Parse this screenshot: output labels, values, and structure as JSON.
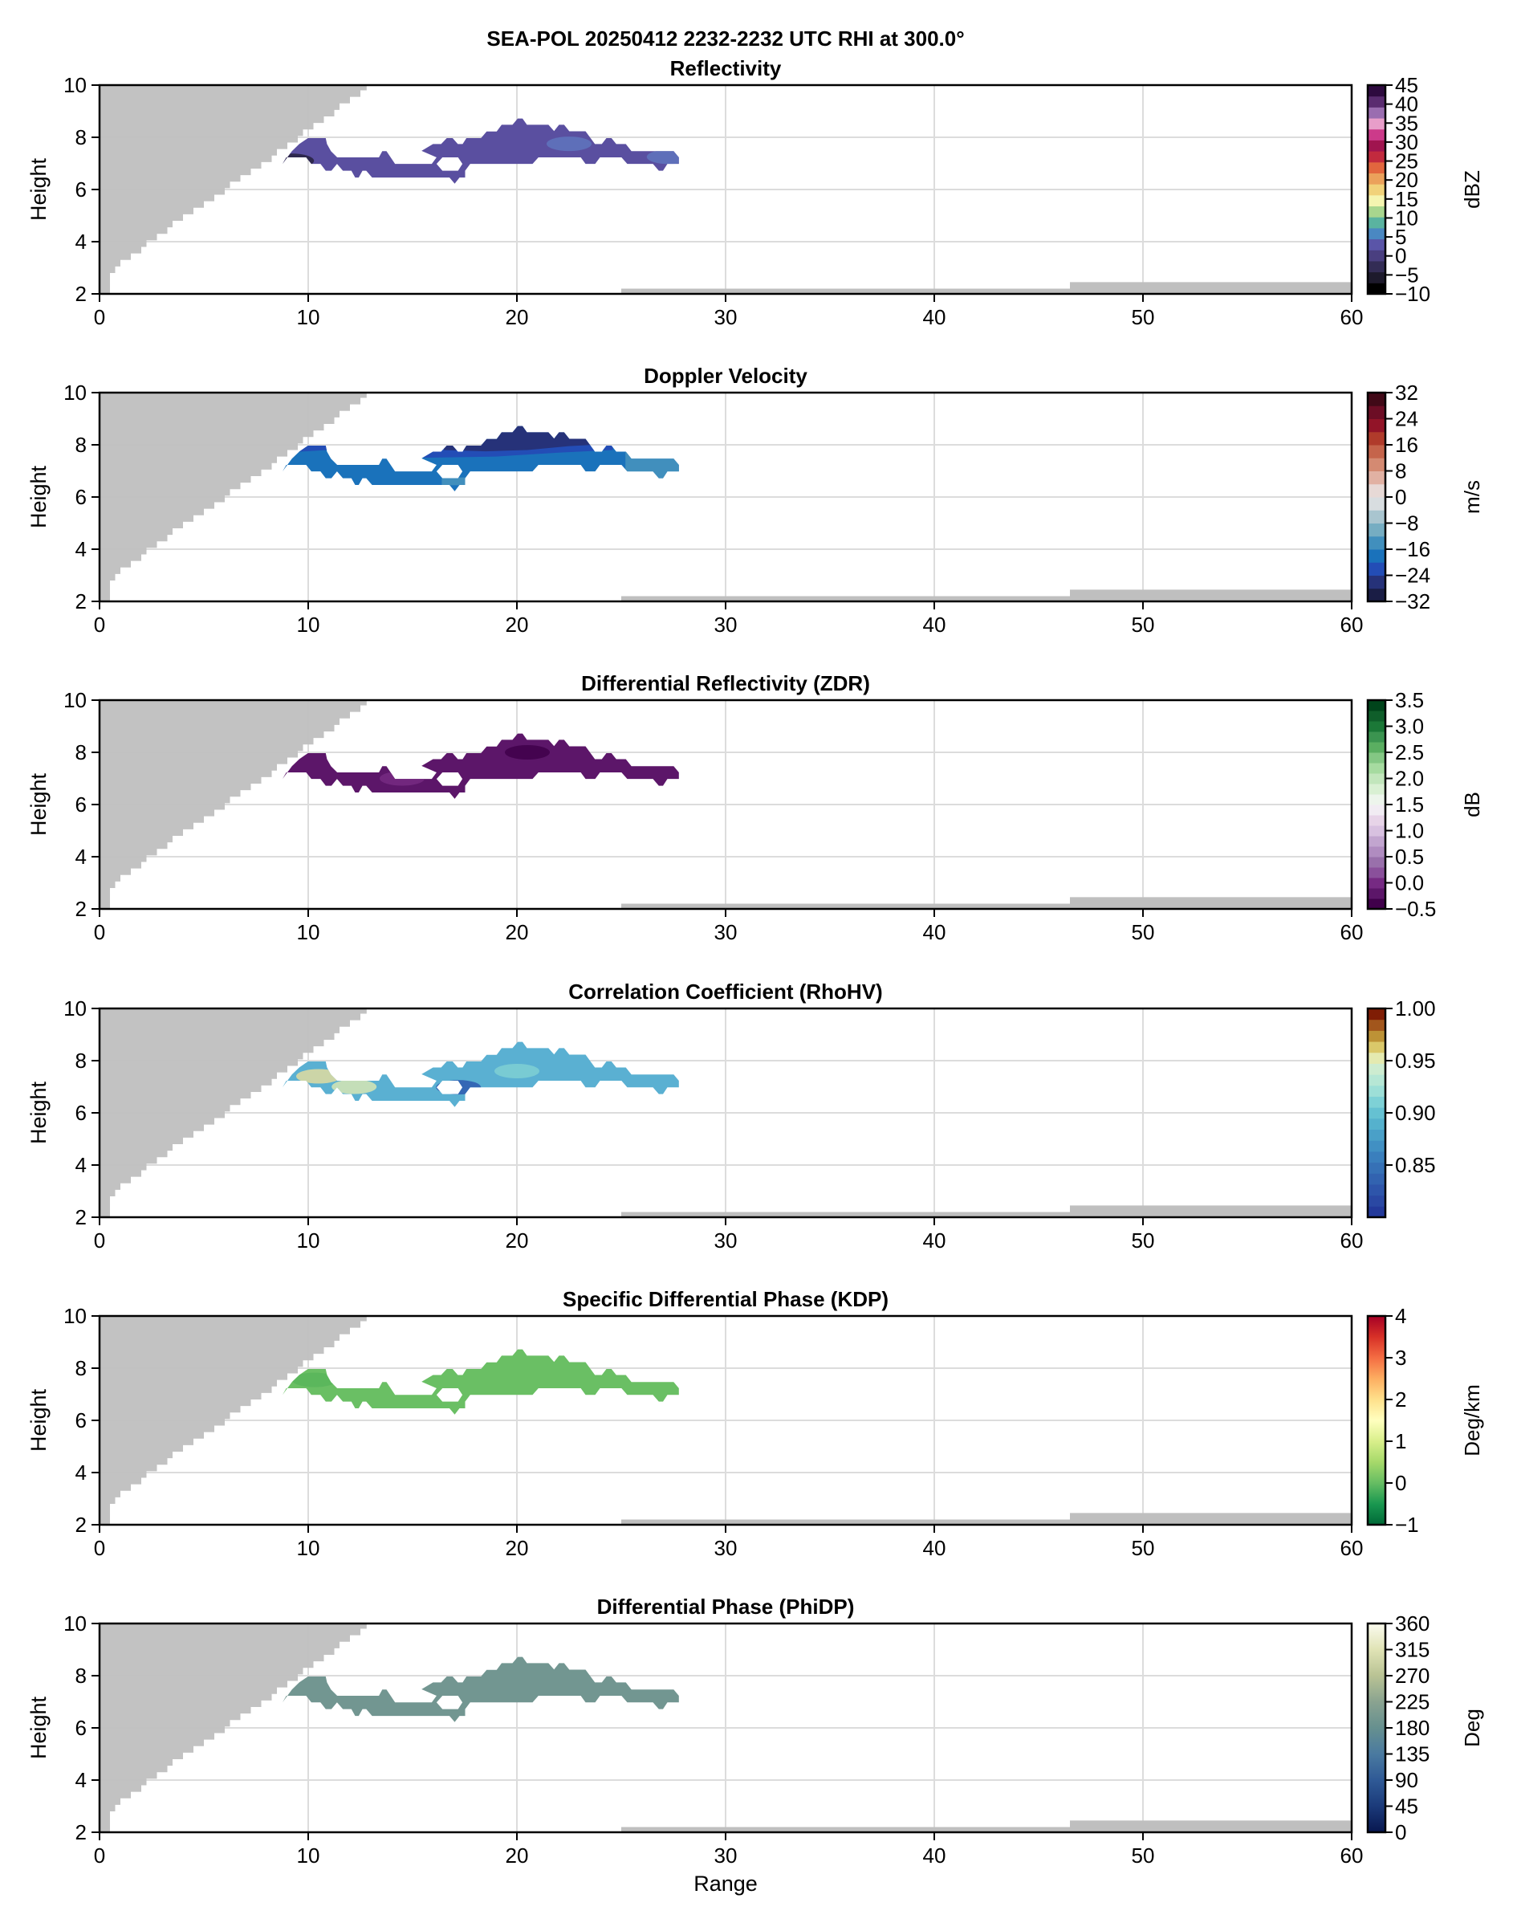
{
  "figure": {
    "suptitle": "SEA-POL 20250412 2232-2232 UTC RHI at 300.0°",
    "xlabel": "Range",
    "ylabel": "Height"
  },
  "colors": {
    "blockage": "#bfbfbf",
    "grid": "#dcdcdc",
    "axis": "#000000"
  },
  "chart_data": [
    {
      "type": "heatmap",
      "title": "Reflectivity",
      "xlabel": "Range",
      "ylabel": "Height",
      "xlim": [
        0,
        60
      ],
      "ylim": [
        2,
        10
      ],
      "xticks": [
        0,
        10,
        20,
        30,
        40,
        50,
        60
      ],
      "yticks": [
        2,
        4,
        6,
        8,
        10
      ],
      "grid": true,
      "colorbar": {
        "label": "dBZ",
        "range": [
          -10,
          45
        ],
        "discrete": true,
        "ticks": [
          -10,
          -5,
          0,
          5,
          10,
          15,
          20,
          25,
          30,
          35,
          40,
          45
        ],
        "tick_labels": [
          "−10",
          "−5",
          "0",
          "5",
          "10",
          "15",
          "20",
          "25",
          "30",
          "35",
          "40",
          "45"
        ],
        "stops": [
          "#000000",
          "#1d1a2c",
          "#332c55",
          "#4a3f80",
          "#5a55a8",
          "#4a88c2",
          "#5ab3a0",
          "#a8d68e",
          "#f5f5b0",
          "#f1d27a",
          "#eba15b",
          "#e2663e",
          "#c22a3e",
          "#a0144f",
          "#cc3a8a",
          "#e89ec9",
          "#9a6db0",
          "#5a2c70",
          "#2e0a3f"
        ]
      },
      "echo_fill": "#5a4fa0",
      "echo_accents": [
        {
          "x": 22.5,
          "y": 7.75,
          "color": "#5f74bd"
        },
        {
          "x": 27.3,
          "y": 7.25,
          "color": "#5f74bd"
        },
        {
          "x": 9.2,
          "y": 7.1,
          "color": "#27213f"
        }
      ]
    },
    {
      "type": "heatmap",
      "title": "Doppler Velocity",
      "xlabel": "Range",
      "ylabel": "Height",
      "xlim": [
        0,
        60
      ],
      "ylim": [
        2,
        10
      ],
      "xticks": [
        0,
        10,
        20,
        30,
        40,
        50,
        60
      ],
      "yticks": [
        2,
        4,
        6,
        8,
        10
      ],
      "grid": true,
      "colorbar": {
        "label": "m/s",
        "range": [
          -32,
          32
        ],
        "discrete": true,
        "ticks": [
          -32,
          -24,
          -16,
          -8,
          0,
          8,
          16,
          24,
          32
        ],
        "tick_labels": [
          "−32",
          "−24",
          "−16",
          "−8",
          "0",
          "8",
          "16",
          "24",
          "32"
        ],
        "stops": [
          "#1a1d45",
          "#263279",
          "#234db6",
          "#1a72bb",
          "#418fbd",
          "#76adc2",
          "#a9c5cf",
          "#d8dde0",
          "#e7d9d6",
          "#e1b1a3",
          "#d48a72",
          "#c5644b",
          "#b03b2b",
          "#921428",
          "#6c0d25",
          "#410917"
        ]
      },
      "echo_fill": "#1a72bb",
      "echo_layers": [
        {
          "name": "upper-core",
          "color": "#263279",
          "value_ms": -28
        },
        {
          "name": "mid-layer",
          "color": "#234db6",
          "value_ms": -22
        },
        {
          "name": "base",
          "color": "#1a72bb",
          "value_ms": -18
        },
        {
          "name": "right-tail",
          "color": "#418fbd",
          "value_ms": -13
        }
      ]
    },
    {
      "type": "heatmap",
      "title": "Differential Reflectivity (ZDR)",
      "xlabel": "Range",
      "ylabel": "Height",
      "xlim": [
        0,
        60
      ],
      "ylim": [
        2,
        10
      ],
      "xticks": [
        0,
        10,
        20,
        30,
        40,
        50,
        60
      ],
      "yticks": [
        2,
        4,
        6,
        8,
        10
      ],
      "grid": true,
      "colorbar": {
        "label": "dB",
        "range": [
          -0.5,
          3.5
        ],
        "discrete": true,
        "ticks": [
          -0.5,
          0.0,
          0.5,
          1.0,
          1.5,
          2.0,
          2.5,
          3.0,
          3.5
        ],
        "tick_labels": [
          "−0.5",
          "0.0",
          "0.5",
          "1.0",
          "1.5",
          "2.0",
          "2.5",
          "3.0",
          "3.5"
        ],
        "stops": [
          "#40004b",
          "#5c1669",
          "#762a83",
          "#8a509b",
          "#9970ab",
          "#b08cc0",
          "#c2a5cf",
          "#d8c1e0",
          "#e7d4e8",
          "#f1ecf3",
          "#edf5ec",
          "#d9f0d3",
          "#c2e6bc",
          "#a6dba0",
          "#84c784",
          "#5aae61",
          "#3b9450",
          "#1b7837",
          "#0f5e2a",
          "#00441b"
        ]
      },
      "echo_fill": "#5c1669",
      "echo_accents": [
        {
          "x": 20.5,
          "y": 8.0,
          "color": "#40004b"
        },
        {
          "x": 14.5,
          "y": 7.0,
          "color": "#762a83"
        }
      ]
    },
    {
      "type": "heatmap",
      "title": "Correlation Coefficient (RhoHV)",
      "xlabel": "Range",
      "ylabel": "Height",
      "xlim": [
        0,
        60
      ],
      "ylim": [
        2,
        10
      ],
      "xticks": [
        0,
        10,
        20,
        30,
        40,
        50,
        60
      ],
      "yticks": [
        2,
        4,
        6,
        8,
        10
      ],
      "grid": true,
      "colorbar": {
        "label": "",
        "range": [
          0.8,
          1.0
        ],
        "discrete": true,
        "ticks": [
          0.85,
          0.9,
          0.95,
          1.0
        ],
        "tick_labels": [
          "0.85",
          "0.90",
          "0.95",
          "1.00"
        ],
        "stops": [
          "#23399a",
          "#2a48a3",
          "#2e55aa",
          "#3263b0",
          "#3671b6",
          "#3a7fbd",
          "#4190c3",
          "#4aa0c8",
          "#55b1cd",
          "#65c1d2",
          "#7ed1d6",
          "#9ddfd7",
          "#b6e7d5",
          "#cdecd0",
          "#e4eab0",
          "#dac86a",
          "#bd9236",
          "#a2561c",
          "#7f1d05"
        ]
      },
      "echo_fill": "#5ab0d2",
      "echo_accents": [
        {
          "x": 17.2,
          "y": 6.98,
          "color": "#2e5bb0"
        },
        {
          "x": 10.5,
          "y": 7.4,
          "color": "#e0dca0"
        },
        {
          "x": 12.2,
          "y": 7.0,
          "color": "#d7e6b4"
        },
        {
          "x": 20.0,
          "y": 7.6,
          "color": "#7fd0d4"
        }
      ]
    },
    {
      "type": "heatmap",
      "title": "Specific Differential Phase (KDP)",
      "xlabel": "Range",
      "ylabel": "Height",
      "xlim": [
        0,
        60
      ],
      "ylim": [
        2,
        10
      ],
      "xticks": [
        0,
        10,
        20,
        30,
        40,
        50,
        60
      ],
      "yticks": [
        2,
        4,
        6,
        8,
        10
      ],
      "grid": true,
      "colorbar": {
        "label": "Deg/km",
        "range": [
          -1,
          4
        ],
        "discrete": false,
        "ticks": [
          -1,
          0,
          1,
          2,
          3,
          4
        ],
        "tick_labels": [
          "−1",
          "0",
          "1",
          "2",
          "3",
          "4"
        ],
        "stops": [
          "#006837",
          "#1a9850",
          "#66bd63",
          "#a6d96a",
          "#d9ef8b",
          "#ffffbf",
          "#fee08b",
          "#fdae61",
          "#f46d43",
          "#d73027",
          "#a50026"
        ]
      },
      "echo_fill": "#6abf64",
      "echo_accents": [
        {
          "x": 10.3,
          "y": 7.55,
          "color": "#58b55a"
        }
      ]
    },
    {
      "type": "heatmap",
      "title": "Differential Phase (PhiDP)",
      "xlabel": "Range",
      "ylabel": "Height",
      "xlim": [
        0,
        60
      ],
      "ylim": [
        2,
        10
      ],
      "xticks": [
        0,
        10,
        20,
        30,
        40,
        50,
        60
      ],
      "yticks": [
        2,
        4,
        6,
        8,
        10
      ],
      "grid": true,
      "colorbar": {
        "label": "Deg",
        "range": [
          0,
          360
        ],
        "discrete": false,
        "ticks": [
          0,
          45,
          90,
          135,
          180,
          225,
          270,
          315,
          360
        ],
        "tick_labels": [
          "0",
          "45",
          "90",
          "135",
          "180",
          "225",
          "270",
          "315",
          "360"
        ],
        "stops": [
          "#08174f",
          "#1b3a7a",
          "#2f5a96",
          "#4a7aa0",
          "#66908f",
          "#8aa390",
          "#b9c394",
          "#e0e3b5",
          "#fbfbef"
        ]
      },
      "echo_fill": "#729691"
    }
  ],
  "shared_geometry": {
    "echo_outline_km": [
      [
        8.77,
        6.98
      ],
      [
        9.22,
        7.47
      ],
      [
        9.57,
        7.74
      ],
      [
        9.99,
        7.97
      ],
      [
        10.84,
        7.97
      ],
      [
        10.9,
        7.74
      ],
      [
        11.09,
        7.47
      ],
      [
        11.39,
        7.23
      ],
      [
        13.39,
        7.23
      ],
      [
        13.55,
        7.47
      ],
      [
        13.75,
        7.47
      ],
      [
        13.95,
        7.23
      ],
      [
        14.16,
        6.98
      ],
      [
        15.92,
        6.98
      ],
      [
        16.15,
        7.23
      ],
      [
        15.43,
        7.48
      ],
      [
        15.98,
        7.74
      ],
      [
        16.37,
        7.74
      ],
      [
        16.64,
        7.97
      ],
      [
        16.92,
        7.97
      ],
      [
        17.17,
        7.74
      ],
      [
        17.4,
        7.74
      ],
      [
        17.58,
        7.97
      ],
      [
        18.28,
        7.97
      ],
      [
        18.55,
        8.22
      ],
      [
        19.03,
        8.22
      ],
      [
        19.27,
        8.48
      ],
      [
        19.79,
        8.48
      ],
      [
        20.04,
        8.72
      ],
      [
        20.27,
        8.72
      ],
      [
        20.48,
        8.48
      ],
      [
        21.51,
        8.48
      ],
      [
        21.78,
        8.24
      ],
      [
        22.02,
        8.48
      ],
      [
        22.26,
        8.48
      ],
      [
        22.51,
        8.23
      ],
      [
        23.29,
        8.23
      ],
      [
        23.74,
        7.74
      ],
      [
        24.07,
        7.74
      ],
      [
        24.29,
        7.97
      ],
      [
        24.53,
        7.97
      ],
      [
        24.76,
        7.74
      ],
      [
        25.22,
        7.74
      ],
      [
        25.49,
        7.47
      ],
      [
        27.51,
        7.47
      ],
      [
        27.76,
        7.23
      ],
      [
        27.76,
        6.98
      ],
      [
        27.21,
        6.98
      ],
      [
        27.0,
        6.72
      ],
      [
        26.8,
        6.72
      ],
      [
        26.52,
        6.98
      ],
      [
        25.29,
        6.98
      ],
      [
        25.01,
        7.23
      ],
      [
        23.98,
        7.23
      ],
      [
        23.75,
        6.98
      ],
      [
        23.29,
        6.98
      ],
      [
        23.06,
        7.23
      ],
      [
        21.03,
        7.23
      ],
      [
        20.75,
        6.98
      ],
      [
        17.76,
        6.98
      ],
      [
        17.52,
        6.72
      ],
      [
        17.52,
        6.46
      ],
      [
        17.25,
        6.46
      ],
      [
        17.02,
        6.22
      ],
      [
        16.77,
        6.46
      ],
      [
        13.06,
        6.46
      ],
      [
        12.78,
        6.72
      ],
      [
        12.6,
        6.72
      ],
      [
        12.42,
        6.46
      ],
      [
        12.25,
        6.46
      ],
      [
        12.07,
        6.72
      ],
      [
        11.66,
        6.72
      ],
      [
        11.38,
        6.98
      ],
      [
        11.11,
        6.72
      ],
      [
        10.84,
        6.72
      ],
      [
        10.59,
        6.98
      ],
      [
        10.15,
        6.98
      ],
      [
        9.9,
        7.23
      ],
      [
        8.95,
        7.23
      ]
    ],
    "echo_hole_km": [
      [
        16.15,
        6.98
      ],
      [
        16.43,
        7.23
      ],
      [
        17.18,
        7.23
      ],
      [
        17.39,
        6.98
      ],
      [
        17.18,
        6.72
      ],
      [
        16.43,
        6.72
      ]
    ],
    "blockage_near_km": [
      [
        0,
        2
      ],
      [
        0.5,
        2
      ],
      [
        0.5,
        2.8
      ],
      [
        0.75,
        2.8
      ],
      [
        0.75,
        3.05
      ],
      [
        1.0,
        3.05
      ],
      [
        1.0,
        3.3
      ],
      [
        1.5,
        3.3
      ],
      [
        1.5,
        3.55
      ],
      [
        2.0,
        3.55
      ],
      [
        2.0,
        3.8
      ],
      [
        2.25,
        3.8
      ],
      [
        2.25,
        4.05
      ],
      [
        2.75,
        4.05
      ],
      [
        2.75,
        4.3
      ],
      [
        3.25,
        4.3
      ],
      [
        3.25,
        4.55
      ],
      [
        3.5,
        4.55
      ],
      [
        3.5,
        4.8
      ],
      [
        4.0,
        4.8
      ],
      [
        4.0,
        5.05
      ],
      [
        4.5,
        5.05
      ],
      [
        4.5,
        5.3
      ],
      [
        5.0,
        5.3
      ],
      [
        5.0,
        5.55
      ],
      [
        5.5,
        5.55
      ],
      [
        5.5,
        5.8
      ],
      [
        6.0,
        5.8
      ],
      [
        6.0,
        6.05
      ],
      [
        6.25,
        6.05
      ],
      [
        6.25,
        6.3
      ],
      [
        6.75,
        6.3
      ],
      [
        6.75,
        6.55
      ],
      [
        7.25,
        6.55
      ],
      [
        7.25,
        6.8
      ],
      [
        7.75,
        6.8
      ],
      [
        7.75,
        7.05
      ],
      [
        8.25,
        7.05
      ],
      [
        8.25,
        7.3
      ],
      [
        8.5,
        7.3
      ],
      [
        8.5,
        7.55
      ],
      [
        9.0,
        7.55
      ],
      [
        9.0,
        7.8
      ],
      [
        9.5,
        7.8
      ],
      [
        9.5,
        8.05
      ],
      [
        9.75,
        8.05
      ],
      [
        9.75,
        8.3
      ],
      [
        10.25,
        8.3
      ],
      [
        10.25,
        8.55
      ],
      [
        10.75,
        8.55
      ],
      [
        10.75,
        8.8
      ],
      [
        11.25,
        8.8
      ],
      [
        11.25,
        9.05
      ],
      [
        11.5,
        9.05
      ],
      [
        11.5,
        9.3
      ],
      [
        12.0,
        9.3
      ],
      [
        12.0,
        9.55
      ],
      [
        12.5,
        9.55
      ],
      [
        12.5,
        9.8
      ],
      [
        12.8,
        9.8
      ],
      [
        12.8,
        10
      ],
      [
        0,
        10
      ]
    ],
    "blockage_far_km": [
      [
        25.0,
        2.0
      ],
      [
        25.0,
        2.2
      ],
      [
        46.5,
        2.2
      ],
      [
        46.5,
        2.45
      ],
      [
        60,
        2.45
      ],
      [
        60,
        2.0
      ]
    ]
  }
}
